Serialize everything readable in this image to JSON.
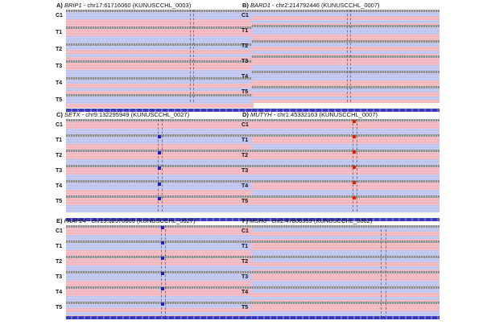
{
  "figure": {
    "colors": {
      "forward_read": "#f2b0b8",
      "reverse_read": "#b8c0f0",
      "coverage": "#8e8e8e",
      "variant_mark_blue": "#2020c0",
      "variant_mark_red": "#e02000",
      "ruler": "#3b3bb5"
    },
    "track_labels": [
      "C1",
      "T1",
      "T2",
      "T3",
      "T4",
      "T5"
    ],
    "panels": [
      {
        "letter": "A)",
        "gene": "BRIP1",
        "locus": " - chr17:61716060 (KUNUSCCHL_0003)"
      },
      {
        "letter": "B)",
        "gene": "BARD1",
        "locus": " - chr2:214792446 (KUNUSCCHL_0007)"
      },
      {
        "letter": "C)",
        "gene": "SETX",
        "locus": " - chr9:132295949 (KUNUSCCHL_0027)"
      },
      {
        "letter": "D)",
        "gene": "MUTYH",
        "locus": " - chr1:45332163 (KUNUSCCHL_0007)"
      },
      {
        "letter": "E)",
        "gene": "FAAP24",
        "locus": " - chr19:32976669 (KUNUSCCHL_0027)"
      },
      {
        "letter": "F)",
        "gene": "MSH6",
        "locus": " - chr2:47806359 (KUNUSCCHL_0002)"
      }
    ]
  }
}
